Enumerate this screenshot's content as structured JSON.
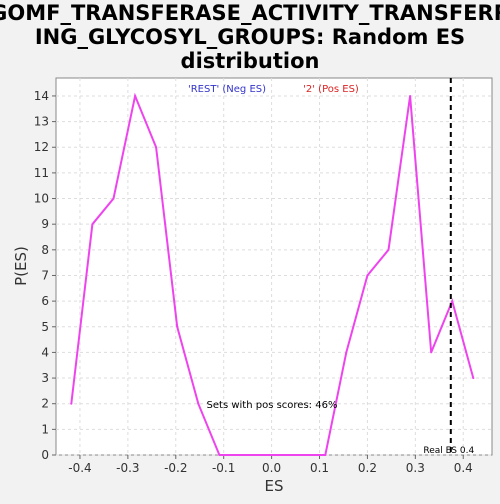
{
  "chart_data": {
    "type": "line",
    "title_lines": [
      "GOMF_TRANSFERASE_ACTIVITY_TRANSFERR",
      "ING_GLYCOSYL_GROUPS: Random ES",
      "distribution"
    ],
    "xlabel": "ES",
    "ylabel": "P(ES)",
    "xlim": [
      -0.45,
      0.46
    ],
    "ylim": [
      0,
      14.7
    ],
    "x_ticks": [
      -0.4,
      -0.3,
      -0.2,
      -0.1,
      0.0,
      0.1,
      0.2,
      0.3,
      0.4
    ],
    "x_tick_labels": [
      "-0.4",
      "-0.3",
      "-0.2",
      "-0.1",
      "0.0",
      "0.1",
      "0.2",
      "0.3",
      "0.4"
    ],
    "y_ticks": [
      0,
      1,
      2,
      3,
      4,
      5,
      6,
      7,
      8,
      9,
      10,
      11,
      12,
      13,
      14
    ],
    "y_tick_labels": [
      "0",
      "1",
      "2",
      "3",
      "4",
      "5",
      "6",
      "7",
      "8",
      "9",
      "10",
      "11",
      "12",
      "13",
      "14"
    ],
    "grid": true,
    "legend": [
      {
        "label": "'REST' (Neg ES)",
        "color": "#3333cc"
      },
      {
        "label": "'2' (Pos ES)",
        "color": "#dd2222"
      }
    ],
    "series": [
      {
        "color": "#ee44ee",
        "x": [
          -0.418,
          -0.374,
          -0.33,
          -0.285,
          -0.241,
          -0.197,
          -0.153,
          -0.109,
          0.112,
          0.156,
          0.2,
          0.244,
          0.289,
          0.333,
          0.377,
          0.421
        ],
        "y": [
          2,
          9,
          10,
          14,
          12,
          5,
          2,
          0,
          0,
          4,
          7,
          8,
          14,
          4,
          6,
          3
        ]
      }
    ],
    "real_es": {
      "x": 0.374,
      "label": "Real ES 0.4"
    },
    "annotation": "Sets with pos scores: 46%"
  }
}
